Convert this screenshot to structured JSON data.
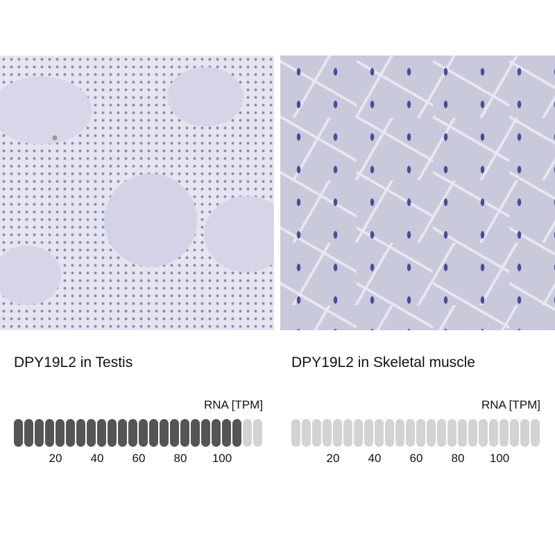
{
  "panels": [
    {
      "title": "DPY19L2 in Testis",
      "rna_label": "RNA [TPM]",
      "total_bars": 24,
      "filled_bars": 22,
      "filled_color": "#555555",
      "empty_color": "#d3d3d3",
      "ticks": [
        "20",
        "40",
        "60",
        "80",
        "100"
      ]
    },
    {
      "title": "DPY19L2 in Skeletal muscle",
      "rna_label": "RNA [TPM]",
      "total_bars": 24,
      "filled_bars": 0,
      "filled_color": "#555555",
      "empty_color": "#d3d3d3",
      "ticks": [
        "20",
        "40",
        "60",
        "80",
        "100"
      ]
    }
  ]
}
